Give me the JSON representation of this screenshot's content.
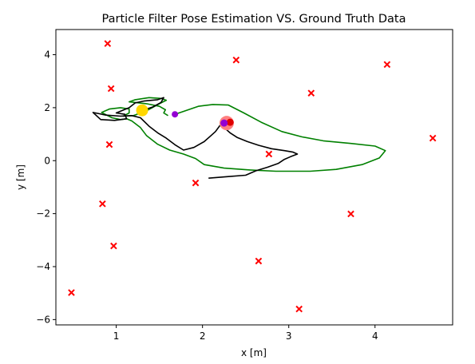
{
  "chart_data": {
    "type": "scatter",
    "title": "Particle Filter Pose Estimation VS. Ground Truth Data",
    "xlabel": "x [m]",
    "ylabel": "y [m]",
    "xlim": [
      0.3,
      4.9
    ],
    "ylim": [
      -6.2,
      4.95
    ],
    "xticks": [
      1,
      2,
      3,
      4
    ],
    "yticks": [
      -6,
      -4,
      -2,
      0,
      2,
      4
    ],
    "grid": false,
    "series": [
      {
        "kind": "landmarks",
        "marker": "x",
        "color": "#ff0000",
        "points": [
          [
            0.9,
            4.42
          ],
          [
            2.39,
            3.8
          ],
          [
            4.14,
            3.63
          ],
          [
            0.94,
            2.72
          ],
          [
            3.26,
            2.55
          ],
          [
            0.92,
            0.61
          ],
          [
            4.67,
            0.85
          ],
          [
            2.77,
            0.25
          ],
          [
            1.92,
            -0.84
          ],
          [
            0.84,
            -1.63
          ],
          [
            3.72,
            -2.01
          ],
          [
            0.97,
            -3.22
          ],
          [
            2.65,
            -3.79
          ],
          [
            0.48,
            -4.98
          ],
          [
            3.12,
            -5.6
          ]
        ]
      },
      {
        "kind": "estimate-path",
        "color": "#008000",
        "points": [
          [
            1.68,
            1.75
          ],
          [
            1.95,
            2.05
          ],
          [
            2.12,
            2.12
          ],
          [
            2.3,
            2.1
          ],
          [
            2.48,
            1.8
          ],
          [
            2.68,
            1.45
          ],
          [
            2.92,
            1.1
          ],
          [
            3.15,
            0.9
          ],
          [
            3.4,
            0.75
          ],
          [
            3.72,
            0.65
          ],
          [
            4.0,
            0.55
          ],
          [
            4.12,
            0.38
          ],
          [
            4.05,
            0.1
          ],
          [
            3.85,
            -0.15
          ],
          [
            3.55,
            -0.33
          ],
          [
            3.25,
            -0.4
          ],
          [
            2.85,
            -0.4
          ],
          [
            2.55,
            -0.35
          ],
          [
            2.25,
            -0.28
          ],
          [
            2.02,
            -0.15
          ],
          [
            1.92,
            0.08
          ],
          [
            1.78,
            0.25
          ],
          [
            1.62,
            0.4
          ],
          [
            1.48,
            0.62
          ],
          [
            1.35,
            0.95
          ],
          [
            1.28,
            1.25
          ],
          [
            1.18,
            1.5
          ],
          [
            1.12,
            1.58
          ],
          [
            1.05,
            1.55
          ],
          [
            0.95,
            1.62
          ],
          [
            0.83,
            1.82
          ],
          [
            0.92,
            1.95
          ],
          [
            1.05,
            2.0
          ],
          [
            1.15,
            1.95
          ],
          [
            1.15,
            1.8
          ],
          [
            1.08,
            1.68
          ],
          [
            1.2,
            1.7
          ],
          [
            1.35,
            1.88
          ],
          [
            1.5,
            2.15
          ],
          [
            1.58,
            2.28
          ],
          [
            1.52,
            2.35
          ],
          [
            1.38,
            2.38
          ],
          [
            1.22,
            2.3
          ],
          [
            1.15,
            2.22
          ],
          [
            1.35,
            2.15
          ],
          [
            1.5,
            2.05
          ],
          [
            1.57,
            1.92
          ],
          [
            1.55,
            1.8
          ],
          [
            1.6,
            1.7
          ]
        ]
      },
      {
        "kind": "ground-truth-path",
        "color": "#000000",
        "points": [
          [
            2.07,
            -0.66
          ],
          [
            2.3,
            -0.6
          ],
          [
            2.5,
            -0.55
          ],
          [
            2.62,
            -0.38
          ],
          [
            2.75,
            -0.25
          ],
          [
            2.88,
            -0.1
          ],
          [
            2.95,
            0.05
          ],
          [
            3.02,
            0.15
          ],
          [
            3.1,
            0.25
          ],
          [
            3.05,
            0.32
          ],
          [
            2.95,
            0.38
          ],
          [
            2.8,
            0.45
          ],
          [
            2.65,
            0.58
          ],
          [
            2.52,
            0.72
          ],
          [
            2.4,
            0.88
          ],
          [
            2.32,
            1.05
          ],
          [
            2.26,
            1.22
          ],
          [
            2.22,
            1.38
          ],
          [
            2.2,
            1.32
          ],
          [
            2.15,
            1.1
          ],
          [
            2.1,
            0.95
          ],
          [
            2.02,
            0.72
          ],
          [
            1.9,
            0.5
          ],
          [
            1.78,
            0.4
          ],
          [
            1.68,
            0.6
          ],
          [
            1.58,
            0.85
          ],
          [
            1.48,
            1.05
          ],
          [
            1.38,
            1.3
          ],
          [
            1.28,
            1.62
          ],
          [
            1.18,
            1.7
          ],
          [
            1.05,
            1.68
          ],
          [
            0.88,
            1.72
          ],
          [
            0.73,
            1.82
          ],
          [
            0.82,
            1.55
          ],
          [
            0.98,
            1.52
          ],
          [
            1.12,
            1.58
          ],
          [
            1.1,
            1.75
          ],
          [
            1.0,
            1.8
          ],
          [
            1.15,
            2.0
          ],
          [
            1.22,
            2.18
          ],
          [
            1.32,
            2.25
          ],
          [
            1.48,
            2.3
          ],
          [
            1.55,
            2.38
          ],
          [
            1.52,
            2.2
          ],
          [
            1.42,
            2.02
          ],
          [
            1.35,
            1.95
          ]
        ]
      },
      {
        "kind": "points",
        "items": [
          {
            "name": "start",
            "color": "#9400d3",
            "x": 1.68,
            "y": 1.75,
            "size": 4
          },
          {
            "name": "particle-cloud",
            "color": "#ff7f7f",
            "x": 2.28,
            "y": 1.42,
            "size": 9
          },
          {
            "name": "estimate",
            "color": "#e00000",
            "x": 2.32,
            "y": 1.45,
            "size": 4.5
          },
          {
            "name": "ground-truth-current",
            "color": "#9400d3",
            "x": 2.25,
            "y": 1.42,
            "size": 4.5
          },
          {
            "name": "robot-position",
            "color": "#ffd700",
            "x": 1.3,
            "y": 1.9,
            "size": 7.5
          }
        ]
      }
    ]
  }
}
